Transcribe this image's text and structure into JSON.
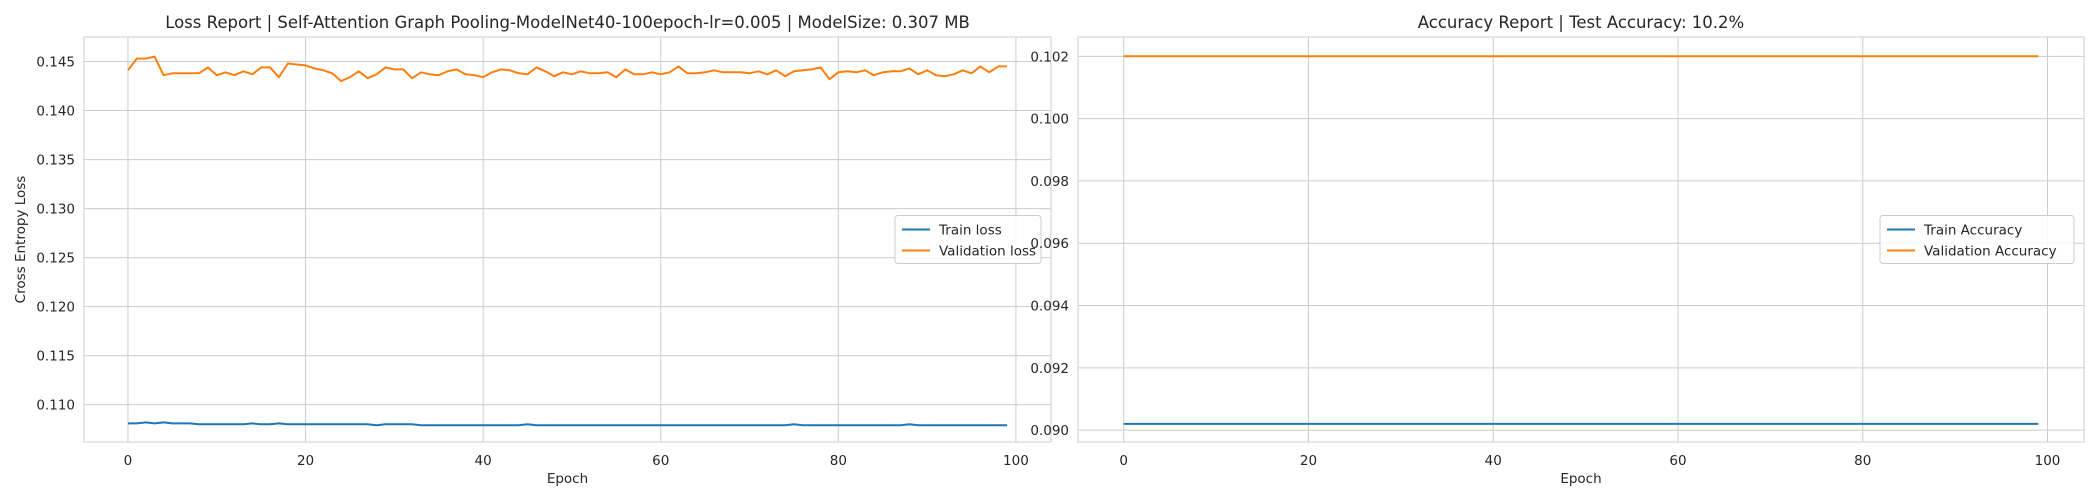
{
  "chart_data": [
    {
      "type": "line",
      "title": "Loss Report | Self-Attention Graph Pooling-ModelNet40-100epoch-lr=0.005 | ModelSize: 0.307 MB",
      "xlabel": "Epoch",
      "ylabel": "Cross Entropy Loss",
      "xlim": [
        -4.95,
        103.95
      ],
      "ylim": [
        0.1062,
        0.1475
      ],
      "xticks": [
        0,
        20,
        40,
        60,
        80,
        100
      ],
      "yticks": [
        0.11,
        0.115,
        0.12,
        0.125,
        0.13,
        0.135,
        0.14,
        0.145
      ],
      "ytick_labels": [
        "0.110",
        "0.115",
        "0.120",
        "0.125",
        "0.130",
        "0.135",
        "0.140",
        "0.145"
      ],
      "grid": true,
      "legend_position": "center-right",
      "series": [
        {
          "name": "Train loss",
          "color": "#1f77b4",
          "x": [
            0,
            1,
            2,
            3,
            4,
            5,
            6,
            7,
            8,
            9,
            10,
            11,
            12,
            13,
            14,
            15,
            16,
            17,
            18,
            19,
            20,
            21,
            22,
            23,
            24,
            25,
            26,
            27,
            28,
            29,
            30,
            31,
            32,
            33,
            34,
            35,
            36,
            37,
            38,
            39,
            40,
            41,
            42,
            43,
            44,
            45,
            46,
            47,
            48,
            49,
            50,
            51,
            52,
            53,
            54,
            55,
            56,
            57,
            58,
            59,
            60,
            61,
            62,
            63,
            64,
            65,
            66,
            67,
            68,
            69,
            70,
            71,
            72,
            73,
            74,
            75,
            76,
            77,
            78,
            79,
            80,
            81,
            82,
            83,
            84,
            85,
            86,
            87,
            88,
            89,
            90,
            91,
            92,
            93,
            94,
            95,
            96,
            97,
            98,
            99
          ],
          "values": [
            0.1081,
            0.1081,
            0.1082,
            0.1081,
            0.1082,
            0.1081,
            0.1081,
            0.1081,
            0.108,
            0.108,
            0.108,
            0.108,
            0.108,
            0.108,
            0.1081,
            0.108,
            0.108,
            0.1081,
            0.108,
            0.108,
            0.108,
            0.108,
            0.108,
            0.108,
            0.108,
            0.108,
            0.108,
            0.108,
            0.1079,
            0.108,
            0.108,
            0.108,
            0.108,
            0.1079,
            0.1079,
            0.1079,
            0.1079,
            0.1079,
            0.1079,
            0.1079,
            0.1079,
            0.1079,
            0.1079,
            0.1079,
            0.1079,
            0.108,
            0.1079,
            0.1079,
            0.1079,
            0.1079,
            0.1079,
            0.1079,
            0.1079,
            0.1079,
            0.1079,
            0.1079,
            0.1079,
            0.1079,
            0.1079,
            0.1079,
            0.1079,
            0.1079,
            0.1079,
            0.1079,
            0.1079,
            0.1079,
            0.1079,
            0.1079,
            0.1079,
            0.1079,
            0.1079,
            0.1079,
            0.1079,
            0.1079,
            0.1079,
            0.108,
            0.1079,
            0.1079,
            0.1079,
            0.1079,
            0.1079,
            0.1079,
            0.1079,
            0.1079,
            0.1079,
            0.1079,
            0.1079,
            0.1079,
            0.108,
            0.1079,
            0.1079,
            0.1079,
            0.1079,
            0.1079,
            0.1079,
            0.1079,
            0.1079,
            0.1079,
            0.1079,
            0.1079
          ]
        },
        {
          "name": "Validation loss",
          "color": "#ff7f0e",
          "x": [
            0,
            1,
            2,
            3,
            4,
            5,
            6,
            7,
            8,
            9,
            10,
            11,
            12,
            13,
            14,
            15,
            16,
            17,
            18,
            19,
            20,
            21,
            22,
            23,
            24,
            25,
            26,
            27,
            28,
            29,
            30,
            31,
            32,
            33,
            34,
            35,
            36,
            37,
            38,
            39,
            40,
            41,
            42,
            43,
            44,
            45,
            46,
            47,
            48,
            49,
            50,
            51,
            52,
            53,
            54,
            55,
            56,
            57,
            58,
            59,
            60,
            61,
            62,
            63,
            64,
            65,
            66,
            67,
            68,
            69,
            70,
            71,
            72,
            73,
            74,
            75,
            76,
            77,
            78,
            79,
            80,
            81,
            82,
            83,
            84,
            85,
            86,
            87,
            88,
            89,
            90,
            91,
            92,
            93,
            94,
            95,
            96,
            97,
            98,
            99
          ],
          "values": [
            0.1441,
            0.1453,
            0.1453,
            0.1455,
            0.1436,
            0.1438,
            0.1438,
            0.1438,
            0.1438,
            0.1444,
            0.1436,
            0.1439,
            0.1436,
            0.144,
            0.1437,
            0.1444,
            0.1444,
            0.1434,
            0.1448,
            0.1447,
            0.1446,
            0.1443,
            0.1441,
            0.1438,
            0.143,
            0.1434,
            0.144,
            0.1433,
            0.1437,
            0.1444,
            0.1442,
            0.1442,
            0.1433,
            0.1439,
            0.1437,
            0.1436,
            0.144,
            0.1442,
            0.1437,
            0.1436,
            0.1434,
            0.1439,
            0.1442,
            0.1441,
            0.1438,
            0.1437,
            0.1444,
            0.144,
            0.1435,
            0.1439,
            0.1437,
            0.144,
            0.1438,
            0.1438,
            0.1439,
            0.1434,
            0.1442,
            0.1437,
            0.1437,
            0.1439,
            0.1437,
            0.1439,
            0.1445,
            0.1438,
            0.1438,
            0.1439,
            0.1441,
            0.1439,
            0.1439,
            0.1439,
            0.1438,
            0.144,
            0.1437,
            0.1441,
            0.1435,
            0.144,
            0.1441,
            0.1442,
            0.1444,
            0.1432,
            0.1439,
            0.144,
            0.1439,
            0.1441,
            0.1436,
            0.1439,
            0.144,
            0.144,
            0.1443,
            0.1437,
            0.1441,
            0.1436,
            0.1435,
            0.1437,
            0.1441,
            0.1438,
            0.1445,
            0.1439,
            0.1445,
            0.1445
          ]
        }
      ]
    },
    {
      "type": "line",
      "title": "Accuracy Report | Test Accuracy: 10.2%",
      "xlabel": "Epoch",
      "ylabel": "",
      "xlim": [
        -4.95,
        103.95
      ],
      "ylim": [
        0.08962,
        0.10262
      ],
      "xticks": [
        0,
        20,
        40,
        60,
        80,
        100
      ],
      "yticks": [
        0.09,
        0.092,
        0.094,
        0.096,
        0.098,
        0.1,
        0.102
      ],
      "ytick_labels": [
        "0.090",
        "0.092",
        "0.094",
        "0.096",
        "0.098",
        "0.100",
        "0.102"
      ],
      "grid": true,
      "legend_position": "center-right",
      "series": [
        {
          "name": "Train Accuracy",
          "color": "#1f77b4",
          "x": [
            0,
            99
          ],
          "values": [
            0.0902,
            0.0902
          ]
        },
        {
          "name": "Validation Accuracy",
          "color": "#ff7f0e",
          "x": [
            0,
            99
          ],
          "values": [
            0.102,
            0.102
          ]
        }
      ]
    }
  ]
}
